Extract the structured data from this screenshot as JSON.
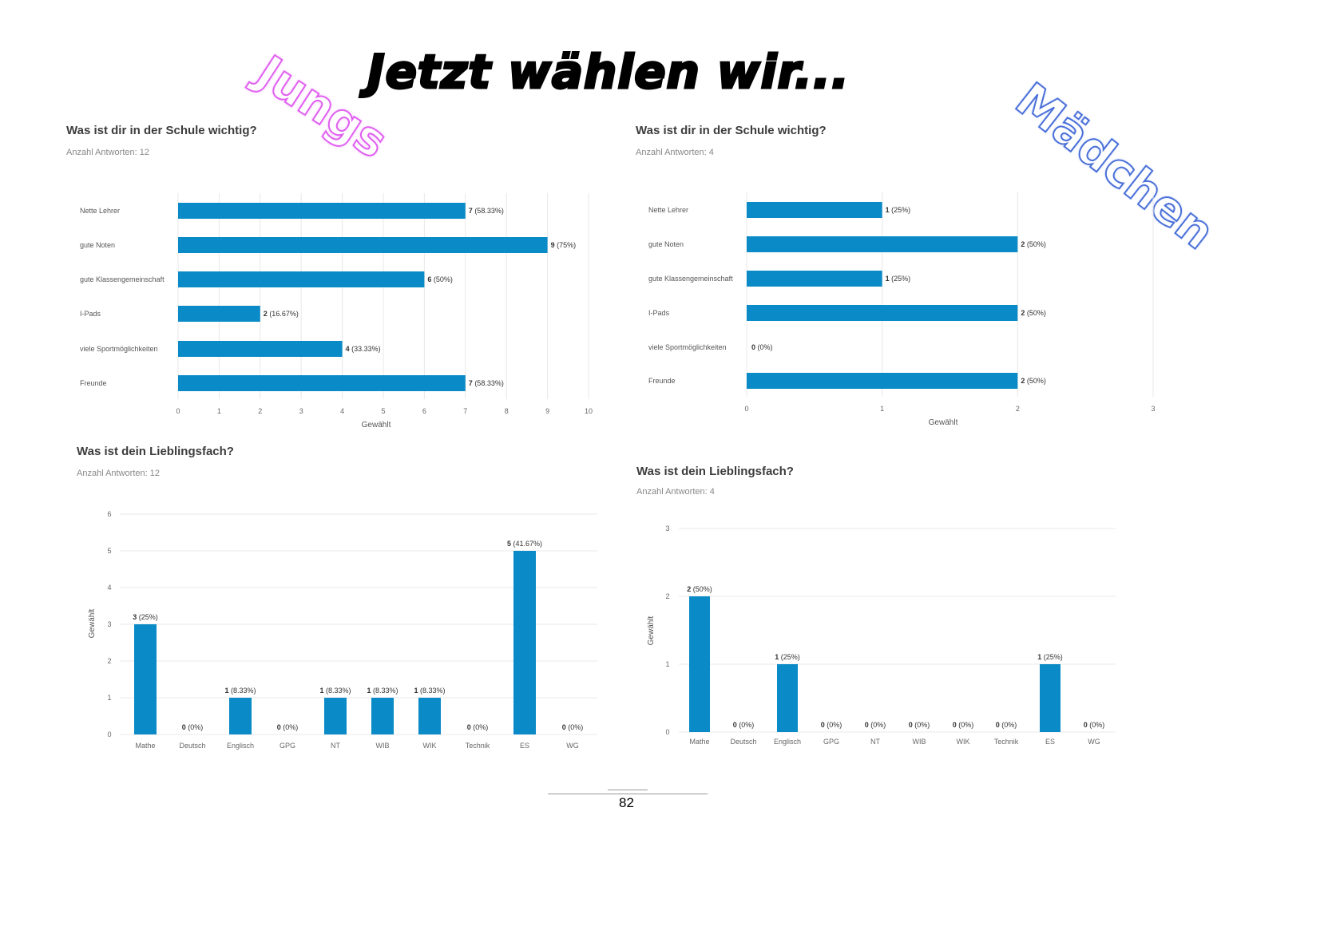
{
  "header": {
    "title": "Jetzt wählen wir...",
    "left_tag": "Jungs",
    "right_tag": "Mädchen"
  },
  "footer": {
    "page_number": "82"
  },
  "colors": {
    "bar": "#0a8ac6",
    "grid": "#e8e8e8",
    "text": "#555555"
  },
  "chart_data": [
    {
      "type": "bar",
      "orientation": "horizontal",
      "group": "Jungs",
      "title": "Was ist dir in der Schule wichtig?",
      "subtitle": "Anzahl Antworten: 12",
      "categories": [
        "Nette Lehrer",
        "gute Noten",
        "gute Klassengemeinschaft",
        "I-Pads",
        "viele Sportmöglichkeiten",
        "Freunde"
      ],
      "values": [
        7,
        9,
        6,
        2,
        4,
        7
      ],
      "percent_labels": [
        "(58.33%)",
        "(75%)",
        "(50%)",
        "(16.67%)",
        "(33.33%)",
        "(58.33%)"
      ],
      "xlabel": "Gewählt",
      "xlim": [
        0,
        10
      ],
      "ticks": [
        0,
        1,
        2,
        3,
        4,
        5,
        6,
        7,
        8,
        9,
        10
      ],
      "grid": true
    },
    {
      "type": "bar",
      "orientation": "horizontal",
      "group": "Mädchen",
      "title": "Was ist dir in der Schule wichtig?",
      "subtitle": "Anzahl Antworten: 4",
      "categories": [
        "Nette Lehrer",
        "gute Noten",
        "gute Klassengemeinschaft",
        "I-Pads",
        "viele Sportmöglichkeiten",
        "Freunde"
      ],
      "values": [
        1,
        2,
        1,
        2,
        0,
        2
      ],
      "percent_labels": [
        "(25%)",
        "(50%)",
        "(25%)",
        "(50%)",
        "(0%)",
        "(50%)"
      ],
      "xlabel": "Gewählt",
      "xlim": [
        0,
        3
      ],
      "ticks": [
        0,
        1,
        2,
        3
      ],
      "grid": true
    },
    {
      "type": "bar",
      "orientation": "vertical",
      "group": "Jungs",
      "title": "Was ist dein Lieblingsfach?",
      "subtitle": "Anzahl Antworten: 12",
      "categories": [
        "Mathe",
        "Deutsch",
        "Englisch",
        "GPG",
        "NT",
        "WIB",
        "WIK",
        "Technik",
        "ES",
        "WG"
      ],
      "values": [
        3,
        0,
        1,
        0,
        1,
        1,
        1,
        0,
        5,
        0
      ],
      "percent_labels": [
        "(25%)",
        "(0%)",
        "(8.33%)",
        "(0%)",
        "(8.33%)",
        "(8.33%)",
        "(8.33%)",
        "(0%)",
        "(41.67%)",
        "(0%)"
      ],
      "ylabel": "Gewählt",
      "ylim": [
        0,
        6
      ],
      "ticks": [
        0,
        1,
        2,
        3,
        4,
        5,
        6
      ],
      "grid": true
    },
    {
      "type": "bar",
      "orientation": "vertical",
      "group": "Mädchen",
      "title": "Was ist dein Lieblingsfach?",
      "subtitle": "Anzahl Antworten: 4",
      "categories": [
        "Mathe",
        "Deutsch",
        "Englisch",
        "GPG",
        "NT",
        "WIB",
        "WIK",
        "Technik",
        "ES",
        "WG"
      ],
      "values": [
        2,
        0,
        1,
        0,
        0,
        0,
        0,
        0,
        1,
        0
      ],
      "percent_labels": [
        "(50%)",
        "(0%)",
        "(25%)",
        "(0%)",
        "(0%)",
        "(0%)",
        "(0%)",
        "(0%)",
        "(25%)",
        "(0%)"
      ],
      "ylabel": "Gewählt",
      "ylim": [
        0,
        3
      ],
      "ticks": [
        0,
        1,
        2,
        3
      ],
      "grid": true
    }
  ]
}
